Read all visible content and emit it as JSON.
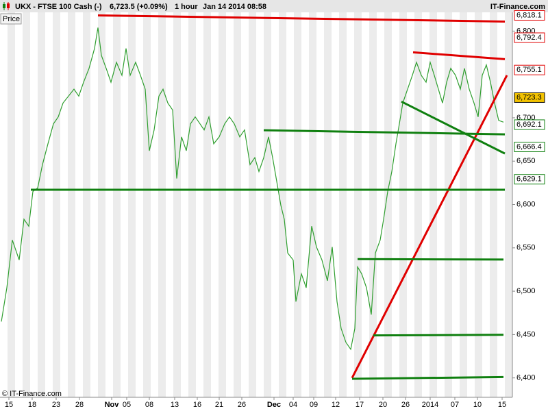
{
  "header": {
    "title": "UKX - FTSE 100 Cash (-)",
    "last": "6,723.5 (+0.09%)",
    "timeframe": "1 hour",
    "datetime": "Jan 14 2014 08:58",
    "brand": "IT-Finance.com"
  },
  "panel_label": "Price",
  "copyright": "© IT-Finance.com",
  "chart_data": {
    "type": "line",
    "xlim": [
      0,
      748
    ],
    "ylim": [
      6380,
      6824
    ],
    "xticks": [
      {
        "value": 13,
        "label": "15"
      },
      {
        "value": 47,
        "label": "18"
      },
      {
        "value": 82,
        "label": "23"
      },
      {
        "value": 116,
        "label": "28"
      },
      {
        "value": 163,
        "label": "Nov"
      },
      {
        "value": 185,
        "label": "05"
      },
      {
        "value": 218,
        "label": "08"
      },
      {
        "value": 255,
        "label": "13"
      },
      {
        "value": 288,
        "label": "16"
      },
      {
        "value": 320,
        "label": "21"
      },
      {
        "value": 353,
        "label": "26"
      },
      {
        "value": 400,
        "label": "Dec"
      },
      {
        "value": 428,
        "label": "04"
      },
      {
        "value": 458,
        "label": "09"
      },
      {
        "value": 490,
        "label": "12"
      },
      {
        "value": 525,
        "label": "17"
      },
      {
        "value": 559,
        "label": "20"
      },
      {
        "value": 592,
        "label": "26"
      },
      {
        "value": 628,
        "label": "2014"
      },
      {
        "value": 664,
        "label": "07"
      },
      {
        "value": 697,
        "label": "10"
      },
      {
        "value": 733,
        "label": "15"
      }
    ],
    "yticks": [
      {
        "value": 6400,
        "label": "6,400"
      },
      {
        "value": 6450,
        "label": "6,450"
      },
      {
        "value": 6500,
        "label": "6,500"
      },
      {
        "value": 6550,
        "label": "6,550"
      },
      {
        "value": 6600,
        "label": "6,600"
      },
      {
        "value": 6650,
        "label": "6,650"
      },
      {
        "value": 6700,
        "label": "6,700"
      },
      {
        "value": 6800,
        "label": "6,800"
      }
    ],
    "series": [
      {
        "color": "#2f9e2f",
        "x": [
          2,
          10,
          18,
          28,
          35,
          42,
          48,
          55,
          62,
          70,
          78,
          85,
          92,
          100,
          108,
          115,
          122,
          130,
          138,
          143,
          148,
          155,
          162,
          170,
          178,
          184,
          190,
          198,
          205,
          212,
          218,
          225,
          232,
          238,
          245,
          252,
          258,
          265,
          272,
          278,
          285,
          292,
          298,
          305,
          312,
          320,
          328,
          335,
          342,
          350,
          357,
          365,
          372,
          378,
          385,
          392,
          398,
          405,
          410,
          415,
          420,
          428,
          432,
          440,
          447,
          455,
          462,
          470,
          478,
          485,
          492,
          498,
          505,
          512,
          518,
          522,
          528,
          535,
          542,
          548,
          555,
          560,
          566,
          572,
          578,
          583,
          588,
          595,
          602,
          608,
          615,
          622,
          628,
          634,
          640,
          646,
          652,
          658,
          665,
          672,
          678,
          685,
          692,
          698,
          704,
          710,
          716,
          722,
          728,
          735
        ],
        "values": [
          6465,
          6504,
          6559,
          6536,
          6583,
          6575,
          6615,
          6619,
          6646,
          6670,
          6693,
          6701,
          6717,
          6725,
          6733,
          6725,
          6741,
          6757,
          6780,
          6804,
          6772,
          6757,
          6741,
          6764,
          6749,
          6780,
          6749,
          6764,
          6749,
          6733,
          6662,
          6686,
          6725,
          6733,
          6717,
          6709,
          6630,
          6678,
          6662,
          6693,
          6701,
          6693,
          6686,
          6701,
          6670,
          6678,
          6693,
          6701,
          6693,
          6678,
          6686,
          6646,
          6654,
          6638,
          6654,
          6678,
          6654,
          6622,
          6599,
          6583,
          6544,
          6536,
          6488,
          6520,
          6504,
          6575,
          6551,
          6536,
          6512,
          6551,
          6488,
          6457,
          6441,
          6433,
          6457,
          6528,
          6520,
          6504,
          6473,
          6544,
          6559,
          6583,
          6615,
          6638,
          6670,
          6693,
          6717,
          6733,
          6749,
          6764,
          6749,
          6741,
          6764,
          6749,
          6733,
          6717,
          6741,
          6757,
          6749,
          6733,
          6757,
          6733,
          6717,
          6701,
          6749,
          6761,
          6741,
          6717,
          6697,
          6695
        ]
      }
    ],
    "trend_lines": [
      {
        "color": "#e00000",
        "x": [
          143,
          737
        ],
        "y": [
          6818.1,
          6811
        ]
      },
      {
        "color": "#e00000",
        "x": [
          603,
          737
        ],
        "y": [
          6775.5,
          6767.6
        ]
      },
      {
        "color": "#e00000",
        "x": [
          514,
          740
        ],
        "y": [
          6400,
          6749
        ]
      },
      {
        "color": "#108010",
        "x": [
          385,
          737
        ],
        "y": [
          6685.6,
          6680.9
        ]
      },
      {
        "color": "#108010",
        "x": [
          586,
          737
        ],
        "y": [
          6718.7,
          6658.8
        ]
      },
      {
        "color": "#108010",
        "x": [
          45,
          737
        ],
        "y": [
          6617,
          6617
        ]
      },
      {
        "color": "#108010",
        "x": [
          522,
          735
        ],
        "y": [
          6537,
          6536.5
        ]
      },
      {
        "color": "#108010",
        "x": [
          545,
          735
        ],
        "y": [
          6449,
          6449.7
        ]
      },
      {
        "color": "#108010",
        "x": [
          514,
          735
        ],
        "y": [
          6399,
          6401
        ]
      }
    ],
    "price_labels": [
      {
        "value": 6818.1,
        "label": "6,818.1",
        "color": "#e00000"
      },
      {
        "value": 6792.4,
        "label": "6,792.4",
        "color": "#e00000"
      },
      {
        "value": 6755.1,
        "label": "6,755.1",
        "color": "#e00000"
      },
      {
        "value": 6723.3,
        "label": "6,723.3",
        "color": "#f2c200"
      },
      {
        "value": 6692.1,
        "label": "6,692.1",
        "color": "#108010"
      },
      {
        "value": 6666.4,
        "label": "6,666.4",
        "color": "#108010"
      },
      {
        "value": 6629.1,
        "label": "6,629.1",
        "color": "#108010"
      }
    ]
  }
}
